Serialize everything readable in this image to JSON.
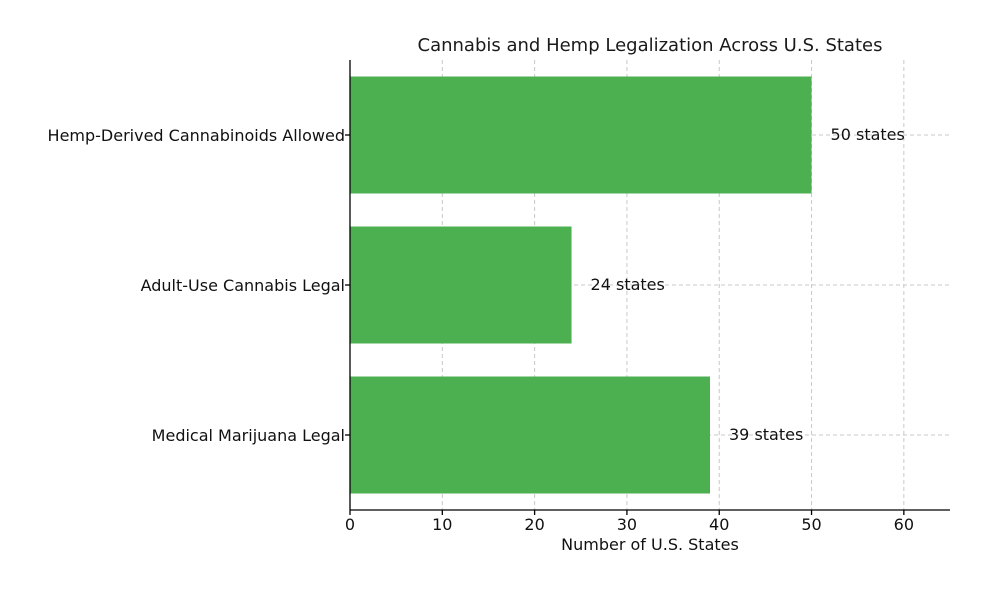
{
  "chart_data": {
    "type": "bar",
    "orientation": "horizontal",
    "title": "Cannabis and Hemp Legalization Across U.S. States",
    "xlabel": "Number of U.S. States",
    "ylabel": "",
    "categories": [
      "Hemp-Derived Cannabinoids Allowed",
      "Adult-Use Cannabis Legal",
      "Medical Marijuana Legal"
    ],
    "values": [
      50,
      24,
      39
    ],
    "value_labels": [
      "50 states",
      "24 states",
      "39 states"
    ],
    "xlim": [
      0,
      65
    ],
    "xticks": [
      0,
      10,
      20,
      30,
      40,
      50,
      60
    ],
    "xtick_labels": [
      "0",
      "10",
      "20",
      "30",
      "40",
      "50",
      "60"
    ],
    "grid": true,
    "bar_color": "#4caf50"
  }
}
